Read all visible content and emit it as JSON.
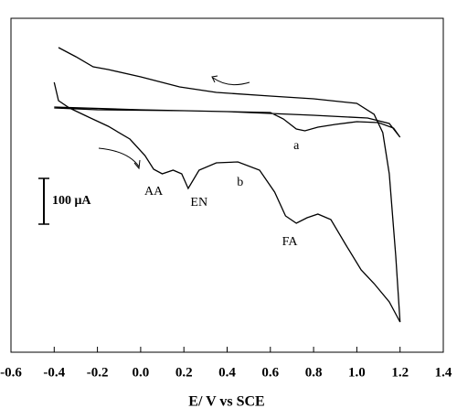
{
  "chart_data": {
    "type": "line",
    "x_label": "E/ V vs SCE",
    "xlim": [
      -0.6,
      1.4
    ],
    "xticks": [
      -0.6,
      -0.4,
      -0.2,
      {
        "value": 0,
        "label": "0.0"
      },
      0.2,
      0.4,
      0.6,
      0.8,
      {
        "value": 1,
        "label": "1.0"
      },
      1.2,
      1.4
    ],
    "ylim": [
      0,
      730
    ],
    "scale_bar": {
      "value": 100,
      "label": "100 μA"
    },
    "series": [
      {
        "color": "#000000",
        "x": [
          -0.4,
          -0.2,
          0.2,
          0.6,
          0.66,
          0.72,
          0.76,
          0.82,
          0.9,
          1.0,
          1.1,
          1.17,
          1.2,
          1.15,
          1.05,
          0.8,
          0.4,
          0.0,
          -0.4
        ],
        "values": [
          534,
          530,
          528,
          524,
          510,
          488,
          484,
          492,
          498,
          504,
          502,
          490,
          470,
          500,
          512,
          518,
          526,
          530,
          536
        ]
      },
      {
        "color": "#000000",
        "x": [
          -0.38,
          -0.3,
          -0.22,
          -0.15,
          0.0,
          0.18,
          0.35,
          0.6,
          0.8,
          1.0,
          1.08,
          1.12,
          1.15,
          1.18,
          1.2,
          1.15,
          1.08,
          1.02,
          0.95,
          0.88,
          0.82,
          0.77,
          0.72,
          0.67,
          0.62,
          0.55,
          0.45,
          0.35,
          0.27,
          0.22,
          0.19,
          0.15,
          0.1,
          0.06,
          0.02,
          -0.05,
          -0.15,
          -0.25,
          -0.33,
          -0.38,
          -0.4
        ],
        "values": [
          666,
          646,
          624,
          618,
          602,
          580,
          568,
          560,
          554,
          544,
          520,
          480,
          390,
          210,
          66,
          110,
          150,
          180,
          234,
          290,
          302,
          294,
          282,
          298,
          350,
          398,
          416,
          414,
          398,
          358,
          390,
          398,
          390,
          400,
          430,
          466,
          494,
          516,
          534,
          550,
          590
        ]
      }
    ],
    "annotations": [
      {
        "text": "a",
        "x": 0.72,
        "y": 450
      },
      {
        "text": "b",
        "x": 0.46,
        "y": 370
      },
      {
        "text": "AA",
        "x": 0.06,
        "y": 350
      },
      {
        "text": "EN",
        "x": 0.27,
        "y": 326
      },
      {
        "text": "FA",
        "x": 0.69,
        "y": 240
      }
    ]
  }
}
